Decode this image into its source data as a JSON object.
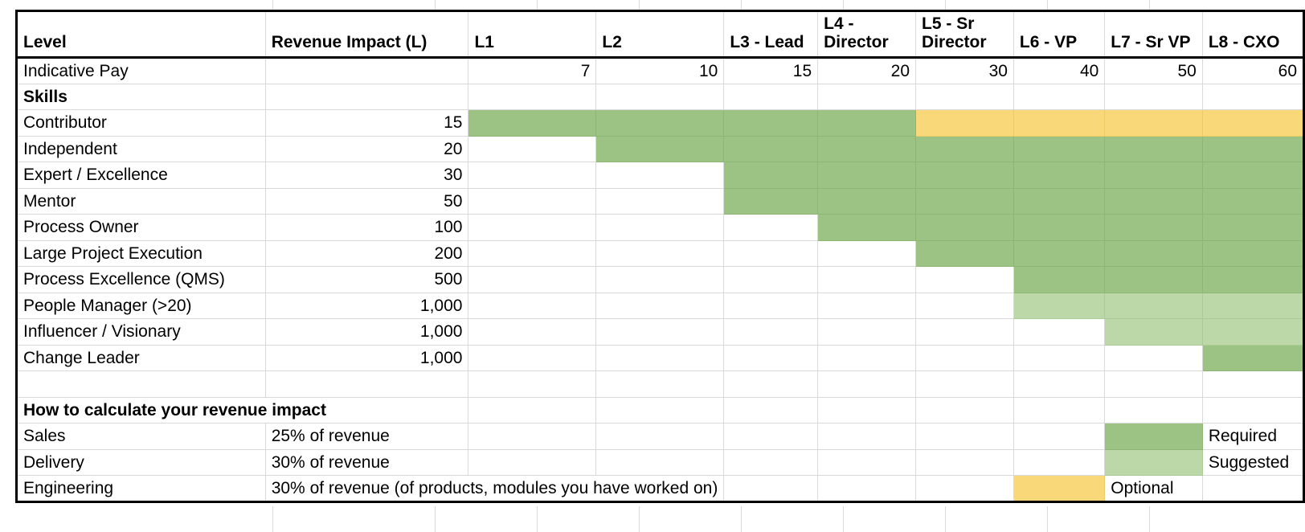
{
  "header": {
    "level": "Level",
    "revenue_impact": "Revenue Impact (L)",
    "levels": [
      "L1",
      "L2",
      "L3 - Lead",
      "L4 - Director",
      "L5 - Sr Director",
      "L6 - VP",
      "L7 - Sr VP",
      "L8 - CXO"
    ]
  },
  "pay": {
    "label": "Indicative Pay",
    "values": [
      "7",
      "10",
      "15",
      "20",
      "30",
      "40",
      "50",
      "60"
    ]
  },
  "skills_heading": "Skills",
  "skills": [
    {
      "label": "Contributor",
      "impact": "15"
    },
    {
      "label": "Independent",
      "impact": "20"
    },
    {
      "label": "Expert / Excellence",
      "impact": "30"
    },
    {
      "label": "Mentor",
      "impact": "50"
    },
    {
      "label": "Process Owner",
      "impact": "100"
    },
    {
      "label": "Large Project Execution",
      "impact": "200"
    },
    {
      "label": "Process Excellence (QMS)",
      "impact": "500"
    },
    {
      "label": "People Manager (>20)",
      "impact": "1,000"
    },
    {
      "label": "Influencer / Visionary",
      "impact": "1,000"
    },
    {
      "label": "Change Leader",
      "impact": "1,000"
    }
  ],
  "requirement_matrix": [
    [
      "required",
      "required",
      "required",
      "required",
      "optional",
      "optional",
      "optional",
      "optional"
    ],
    [
      "none",
      "required",
      "required",
      "required",
      "required",
      "required",
      "required",
      "required"
    ],
    [
      "none",
      "none",
      "required",
      "required",
      "required",
      "required",
      "required",
      "required"
    ],
    [
      "none",
      "none",
      "required",
      "required",
      "required",
      "required",
      "required",
      "required"
    ],
    [
      "none",
      "none",
      "none",
      "required",
      "required",
      "required",
      "required",
      "required"
    ],
    [
      "none",
      "none",
      "none",
      "none",
      "required",
      "required",
      "required",
      "required"
    ],
    [
      "none",
      "none",
      "none",
      "none",
      "none",
      "required",
      "required",
      "required"
    ],
    [
      "none",
      "none",
      "none",
      "none",
      "none",
      "suggested",
      "suggested",
      "suggested"
    ],
    [
      "none",
      "none",
      "none",
      "none",
      "none",
      "none",
      "suggested",
      "suggested"
    ],
    [
      "none",
      "none",
      "none",
      "none",
      "none",
      "none",
      "none",
      "required"
    ]
  ],
  "calc": {
    "heading": "How to calculate your revenue impact",
    "rows": [
      {
        "label": "Sales",
        "formula": "25% of revenue"
      },
      {
        "label": "Delivery",
        "formula": "30% of revenue"
      },
      {
        "label": "Engineering",
        "formula": "30% of revenue (of products, modules you have worked on)"
      }
    ]
  },
  "legend": {
    "required": "Required",
    "suggested": "Suggested",
    "optional": "Optional"
  },
  "colors": {
    "required": "#9dc384",
    "suggested": "#bcd8a9",
    "optional": "#f8d878"
  }
}
